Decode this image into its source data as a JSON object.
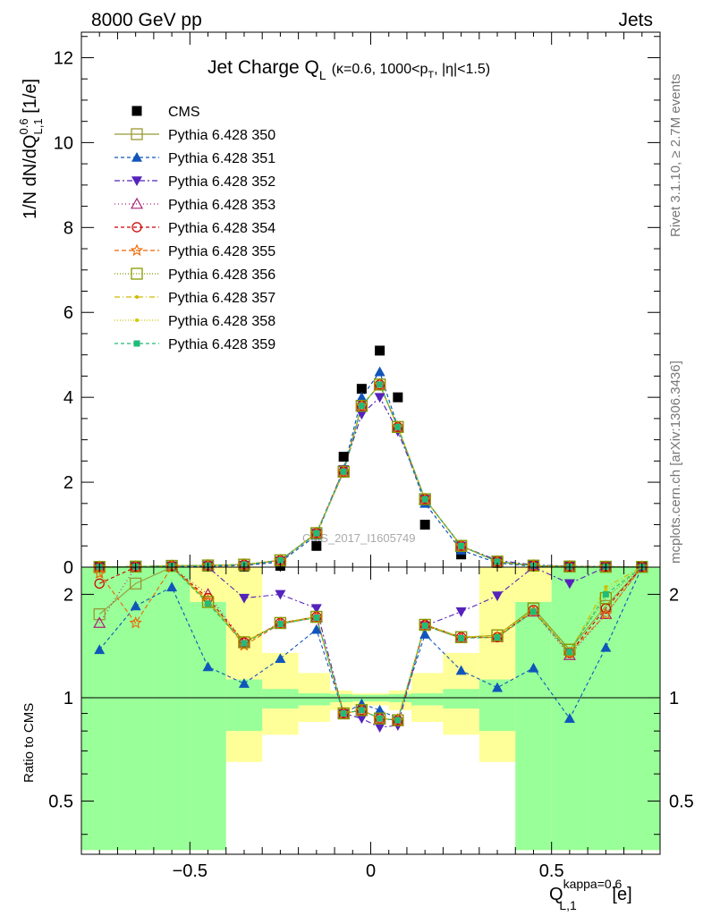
{
  "header": {
    "left": "8000 GeV pp",
    "right": "Jets"
  },
  "side_text": {
    "rivet": "Rivet 3.1.10, ≥ 2.7M events",
    "mcplots": "mcplots.cern.ch [arXiv:1306.3436]"
  },
  "watermark": "CMS_2017_I1605749",
  "plot_title": {
    "main": "Jet Charge Q",
    "main_sub": "L",
    "detail": "(κ=0.6, 1000<p",
    "detail_sub": "T",
    "detail_end": ", |η|<1.5)"
  },
  "axes": {
    "y_main": {
      "label": "1/N dN/dQ",
      "sup": "0.6",
      "sub": "L,1",
      "unit": " [1/e]"
    },
    "y_ratio": {
      "label": "Ratio to CMS"
    },
    "x": {
      "label": "Q",
      "sup": "kappa=0.6",
      "sub": "L,1",
      "unit": " [e]"
    }
  },
  "colors": {
    "band_inner": "#99ff99",
    "band_outer": "#ffff99",
    "s350": "#999933",
    "s351": "#1155bb",
    "s352": "#5522bb",
    "s353": "#aa2277",
    "s354": "#cc0000",
    "s355": "#ee6600",
    "s356": "#889900",
    "s357": "#ccbb00",
    "s358": "#cccc00",
    "s359": "#22bb77"
  },
  "chart_data": {
    "type": "scatter",
    "x": [
      -0.75,
      -0.65,
      -0.55,
      -0.45,
      -0.35,
      -0.25,
      -0.15,
      -0.075,
      -0.025,
      0.025,
      0.075,
      0.15,
      0.25,
      0.35,
      0.45,
      0.55,
      0.65,
      0.75
    ],
    "xlim": [
      -0.8,
      0.8
    ],
    "xticks": [
      -0.5,
      0,
      0.5
    ],
    "xtick_labels": [
      "−0.5",
      "0",
      "0.5"
    ],
    "main": {
      "ylim": [
        0,
        12.6
      ],
      "yticks": [
        0,
        2,
        4,
        6,
        8,
        10,
        12
      ],
      "ytick_labels": [
        "0",
        "2",
        "4",
        "6",
        "8",
        "10",
        "12"
      ]
    },
    "ratio": {
      "ylim": [
        0.35,
        2.4
      ],
      "log": true,
      "yticks": [
        0.5,
        1,
        2
      ],
      "ytick_labels": [
        "0.5",
        "1",
        "2"
      ],
      "band_inner": [
        [
          0.36,
          2.4
        ],
        [
          0.36,
          2.4
        ],
        [
          0.36,
          2.4
        ],
        [
          0.36,
          1.9
        ],
        [
          0.8,
          1.13
        ],
        [
          0.93,
          1.06
        ],
        [
          0.95,
          1.03
        ],
        [
          0.97,
          1.025
        ],
        [
          0.975,
          1.02
        ],
        [
          0.975,
          1.02
        ],
        [
          0.97,
          1.025
        ],
        [
          0.95,
          1.03
        ],
        [
          0.93,
          1.06
        ],
        [
          0.8,
          1.13
        ],
        [
          0.36,
          1.9
        ],
        [
          0.36,
          2.4
        ],
        [
          0.36,
          2.4
        ],
        [
          0.36,
          2.4
        ]
      ],
      "band_outer": [
        [
          0.36,
          2.4
        ],
        [
          0.36,
          2.4
        ],
        [
          0.36,
          2.4
        ],
        [
          0.36,
          2.4
        ],
        [
          0.65,
          2.4
        ],
        [
          0.78,
          1.35
        ],
        [
          0.85,
          1.18
        ],
        [
          0.92,
          1.05
        ],
        [
          0.95,
          1.03
        ],
        [
          0.95,
          1.03
        ],
        [
          0.92,
          1.05
        ],
        [
          0.85,
          1.18
        ],
        [
          0.78,
          1.35
        ],
        [
          0.65,
          2.4
        ],
        [
          0.36,
          2.4
        ],
        [
          0.36,
          2.4
        ],
        [
          0.36,
          2.4
        ],
        [
          0.36,
          2.4
        ]
      ]
    },
    "series": [
      {
        "name": "CMS",
        "color": "#000000",
        "marker": "square",
        "dash": "none",
        "kind": "data",
        "values": [
          0.002,
          0.006,
          0.01,
          0.01,
          0.015,
          0.03,
          0.5,
          2.6,
          4.2,
          5.1,
          4.0,
          1.0,
          0.3,
          0.1,
          0.02,
          0.01,
          0.006,
          0.002
        ]
      },
      {
        "name": "Pythia 6.428 350",
        "color": "#999933",
        "marker": "open-square",
        "dash": "none",
        "values": [
          0.003,
          0.012,
          0.03,
          0.04,
          0.06,
          0.16,
          0.8,
          2.25,
          3.8,
          4.3,
          3.3,
          1.6,
          0.5,
          0.13,
          0.035,
          0.014,
          0.009,
          0.004
        ],
        "ratio": [
          1.75,
          2.15,
          2.5,
          1.9,
          1.45,
          1.65,
          1.72,
          0.9,
          0.92,
          0.87,
          0.86,
          1.63,
          1.5,
          1.52,
          1.82,
          1.38,
          1.85,
          2.5
        ]
      },
      {
        "name": "Pythia 6.428 351",
        "color": "#1155bb",
        "marker": "triangle-up",
        "dash": "4,3",
        "values": [
          0.002,
          0.009,
          0.02,
          0.02,
          0.04,
          0.12,
          0.75,
          2.3,
          4.0,
          4.6,
          3.3,
          1.5,
          0.4,
          0.1,
          0.02,
          0.008,
          0.008,
          0.003
        ],
        "ratio": [
          1.38,
          1.85,
          2.1,
          1.23,
          1.1,
          1.3,
          1.58,
          0.9,
          0.96,
          0.92,
          0.87,
          1.53,
          1.2,
          1.07,
          1.22,
          0.87,
          1.4,
          2.5
        ]
      },
      {
        "name": "Pythia 6.428 352",
        "color": "#5522bb",
        "marker": "triangle-down",
        "dash": "6,3,2,3",
        "values": [
          0.003,
          0.012,
          0.03,
          0.04,
          0.05,
          0.15,
          0.8,
          2.3,
          3.6,
          4.0,
          3.2,
          1.6,
          0.5,
          0.16,
          0.05,
          0.022,
          0.014,
          0.005
        ],
        "ratio": [
          2.5,
          2.5,
          2.5,
          2.5,
          1.95,
          2.0,
          1.82,
          0.9,
          0.87,
          0.82,
          0.83,
          1.62,
          1.78,
          1.98,
          2.5,
          2.15,
          2.5,
          2.5
        ]
      },
      {
        "name": "Pythia 6.428 353",
        "color": "#aa2277",
        "marker": "open-triangle",
        "dash": "1,3",
        "values": [
          0.003,
          0.012,
          0.03,
          0.04,
          0.06,
          0.16,
          0.8,
          2.25,
          3.8,
          4.3,
          3.3,
          1.6,
          0.5,
          0.13,
          0.035,
          0.014,
          0.009,
          0.004
        ],
        "ratio": [
          1.65,
          2.5,
          2.5,
          2.0,
          1.45,
          1.65,
          1.72,
          0.9,
          0.92,
          0.87,
          0.86,
          1.63,
          1.5,
          1.5,
          1.78,
          1.33,
          1.75,
          2.5
        ]
      },
      {
        "name": "Pythia 6.428 354",
        "color": "#cc0000",
        "marker": "open-circle",
        "dash": "4,3",
        "values": [
          0.003,
          0.012,
          0.03,
          0.04,
          0.06,
          0.16,
          0.8,
          2.25,
          3.8,
          4.3,
          3.3,
          1.6,
          0.5,
          0.13,
          0.035,
          0.014,
          0.009,
          0.004
        ],
        "ratio": [
          2.15,
          2.5,
          2.5,
          1.95,
          1.45,
          1.65,
          1.72,
          0.9,
          0.92,
          0.87,
          0.86,
          1.63,
          1.5,
          1.5,
          1.8,
          1.35,
          1.82,
          2.5
        ]
      },
      {
        "name": "Pythia 6.428 355",
        "color": "#ee6600",
        "marker": "open-star",
        "dash": "5,3",
        "values": [
          0.003,
          0.012,
          0.03,
          0.04,
          0.06,
          0.16,
          0.8,
          2.25,
          3.8,
          4.3,
          3.3,
          1.6,
          0.5,
          0.13,
          0.035,
          0.014,
          0.009,
          0.004
        ],
        "ratio": [
          2.3,
          1.65,
          2.5,
          1.92,
          1.42,
          1.64,
          1.71,
          0.9,
          0.92,
          0.87,
          0.86,
          1.62,
          1.49,
          1.5,
          1.78,
          1.35,
          1.75,
          2.5
        ]
      },
      {
        "name": "Pythia 6.428 356",
        "color": "#889900",
        "marker": "open-square",
        "dash": "1,2",
        "values": [
          0.003,
          0.012,
          0.03,
          0.04,
          0.06,
          0.16,
          0.8,
          2.25,
          3.8,
          4.3,
          3.3,
          1.6,
          0.5,
          0.13,
          0.035,
          0.014,
          0.009,
          0.004
        ],
        "ratio": [
          2.5,
          2.5,
          2.5,
          1.9,
          1.45,
          1.65,
          1.72,
          0.9,
          0.92,
          0.87,
          0.86,
          1.63,
          1.5,
          1.52,
          1.82,
          1.38,
          1.95,
          2.5
        ]
      },
      {
        "name": "Pythia 6.428 357",
        "color": "#ccbb00",
        "marker": "small-dot",
        "dash": "6,3,1,3",
        "values": [
          0.003,
          0.012,
          0.03,
          0.04,
          0.06,
          0.16,
          0.8,
          2.25,
          3.8,
          4.3,
          3.3,
          1.6,
          0.5,
          0.13,
          0.035,
          0.014,
          0.009,
          0.004
        ],
        "ratio": [
          2.5,
          2.5,
          2.5,
          1.9,
          1.45,
          1.65,
          1.72,
          0.9,
          0.92,
          0.87,
          0.86,
          1.63,
          1.5,
          1.52,
          1.8,
          1.36,
          2.1,
          2.5
        ]
      },
      {
        "name": "Pythia 6.428 358",
        "color": "#cccc00",
        "marker": "small-dot",
        "dash": "1,2",
        "values": [
          0.003,
          0.012,
          0.03,
          0.04,
          0.06,
          0.16,
          0.8,
          2.25,
          3.8,
          4.3,
          3.3,
          1.6,
          0.5,
          0.13,
          0.035,
          0.014,
          0.009,
          0.004
        ],
        "ratio": [
          2.5,
          2.5,
          2.5,
          1.9,
          1.45,
          1.65,
          1.72,
          0.9,
          0.92,
          0.87,
          0.86,
          1.63,
          1.5,
          1.52,
          1.8,
          1.36,
          2.05,
          2.5
        ]
      },
      {
        "name": "Pythia 6.428 359",
        "color": "#22bb77",
        "marker": "filled-square",
        "dash": "4,3",
        "values": [
          0.003,
          0.012,
          0.03,
          0.04,
          0.06,
          0.16,
          0.8,
          2.25,
          3.8,
          4.3,
          3.3,
          1.6,
          0.5,
          0.13,
          0.035,
          0.014,
          0.009,
          0.004
        ],
        "ratio": [
          2.5,
          2.5,
          2.5,
          1.88,
          1.44,
          1.64,
          1.71,
          0.9,
          0.92,
          0.87,
          0.86,
          1.62,
          1.49,
          1.5,
          1.78,
          1.36,
          2.0,
          2.5
        ]
      }
    ]
  }
}
